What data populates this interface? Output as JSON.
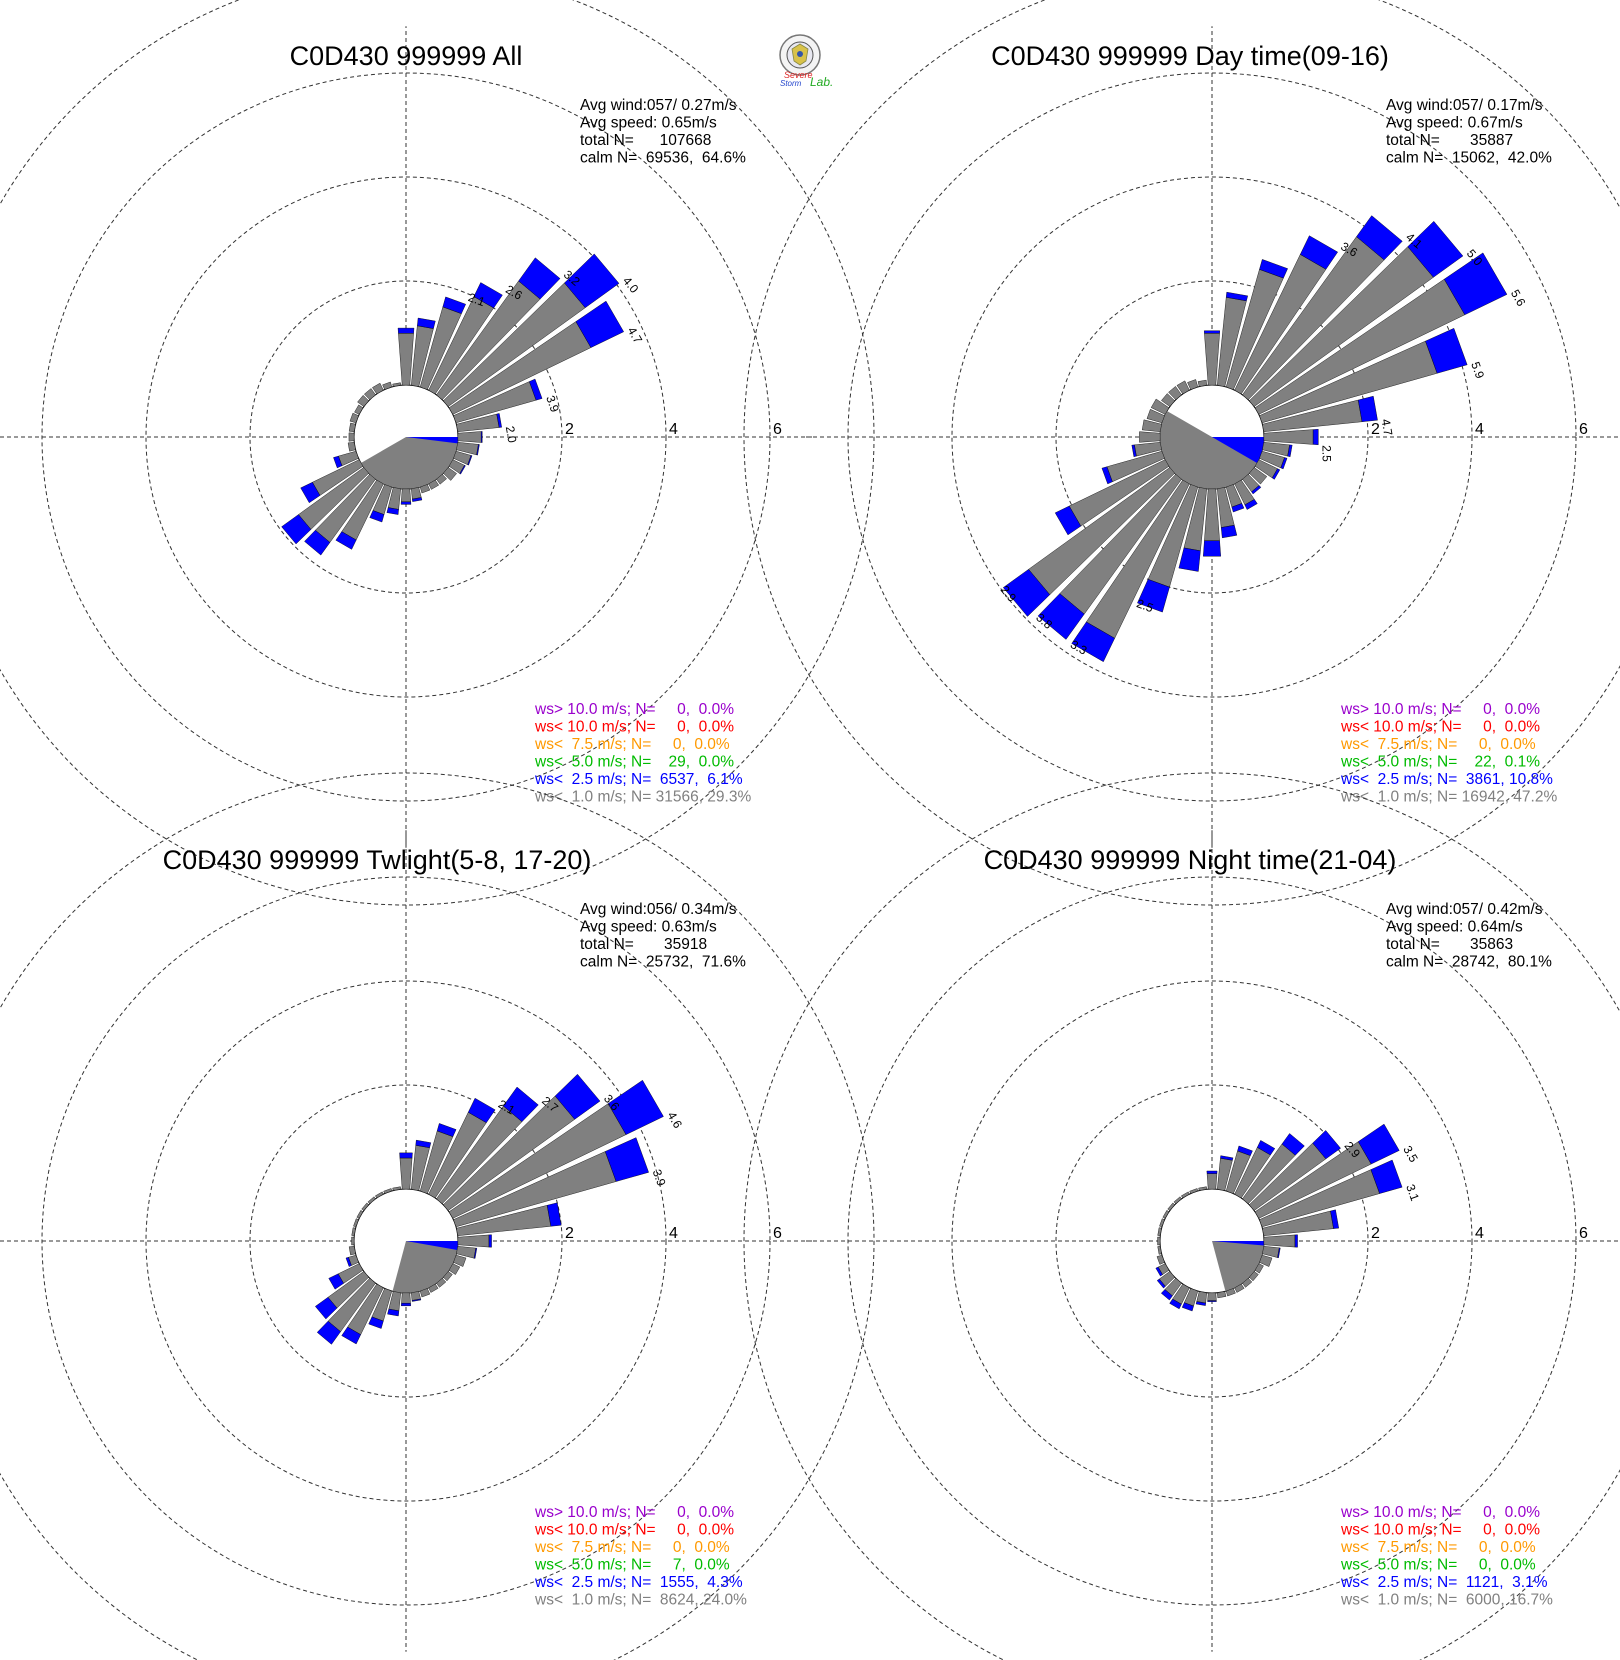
{
  "logo": {
    "text_top": "Severe",
    "text_bottom": "Storm",
    "text_lab": "Lab."
  },
  "colors": {
    "gt10": "#9900cc",
    "lt10": "#ff0000",
    "lt7_5": "#ff9900",
    "lt5": "#00bb00",
    "lt2_5": "#0000ff",
    "lt1": "#808080",
    "calm_fill": "#808080",
    "grid": "#333333"
  },
  "chart_data": [
    {
      "type": "wind_rose",
      "title": "C0D430 999999 All",
      "rlim": [
        0,
        6
      ],
      "rticks": [
        "2",
        "4",
        "6"
      ],
      "info": {
        "avg_wind": "Avg wind:057/ 0.27m/s",
        "avg_speed": "Avg speed: 0.65m/s",
        "total": "total N=      107668",
        "calm": "calm N=  69536,  64.6%"
      },
      "calm_wedge": {
        "from_dir": 90,
        "to_dir": 240,
        "blue_to_dir": 97
      },
      "legend": [
        "ws> 10.0 m/s; N=     0,  0.0%",
        "ws< 10.0 m/s; N=     0,  0.0%",
        "ws<  7.5 m/s; N=     0,  0.0%",
        "ws<  5.0 m/s; N=    29,  0.0%",
        "ws<  2.5 m/s; N=  6537,  6.1%",
        "ws<  1.0 m/s; N= 31566, 29.3%"
      ],
      "directions": [
        0,
        10,
        20,
        30,
        40,
        50,
        60,
        70,
        80,
        90,
        100,
        110,
        120,
        130,
        140,
        150,
        160,
        170,
        180,
        190,
        200,
        210,
        220,
        230,
        240,
        250,
        260,
        270,
        280,
        290,
        300,
        310,
        320,
        330,
        340,
        350
      ],
      "series": [
        {
          "name": "ws< 1.0 m/s",
          "values": [
            1.0,
            1.15,
            1.6,
            2.0,
            2.7,
            3.25,
            2.95,
            1.6,
            0.8,
            0.45,
            0.4,
            0.3,
            0.25,
            0.2,
            0.12,
            0.12,
            0.12,
            0.2,
            0.25,
            0.4,
            0.55,
            1.2,
            1.5,
            1.55,
            1.0,
            0.35,
            0.12,
            0.1,
            0.1,
            0.12,
            0.1,
            0.15,
            0.15,
            0.15,
            0.1,
            0.05
          ]
        },
        {
          "name": "ws< 2.5 m/s",
          "values": [
            0.1,
            0.15,
            0.2,
            0.3,
            0.55,
            0.8,
            0.7,
            0.12,
            0.05,
            0.02,
            0.02,
            0.02,
            0.02,
            0.0,
            0.0,
            0.0,
            0.0,
            0.05,
            0.05,
            0.1,
            0.15,
            0.2,
            0.3,
            0.4,
            0.25,
            0.1,
            0.0,
            0.0,
            0.0,
            0.0,
            0.0,
            0.0,
            0.0,
            0.0,
            0.0,
            0.0
          ]
        }
      ],
      "peak_labels": [
        {
          "dir": 20,
          "text": "2.1"
        },
        {
          "dir": 30,
          "text": "2.6"
        },
        {
          "dir": 40,
          "text": "3.2"
        },
        {
          "dir": 50,
          "text": "4.0"
        },
        {
          "dir": 60,
          "text": "4.7"
        },
        {
          "dir": 70,
          "text": "3.9"
        },
        {
          "dir": 80,
          "text": "2.0"
        }
      ]
    },
    {
      "type": "wind_rose",
      "title": "C0D430 999999 Day time(09-16)",
      "rlim": [
        0,
        6
      ],
      "rticks": [
        "2",
        "4",
        "6"
      ],
      "info": {
        "avg_wind": "Avg wind:057/ 0.17m/s",
        "avg_speed": "Avg speed: 0.67m/s",
        "total": "total N=       35887",
        "calm": "calm N=  15062,  42.0%"
      },
      "calm_wedge": {
        "from_dir": 90,
        "to_dir": 300,
        "blue_to_dir": 120
      },
      "legend": [
        "ws> 10.0 m/s; N=     0,  0.0%",
        "ws< 10.0 m/s; N=     0,  0.0%",
        "ws<  7.5 m/s; N=     0,  0.0%",
        "ws<  5.0 m/s; N=    22,  0.1%",
        "ws<  2.5 m/s; N=  3861, 10.8%",
        "ws<  1.0 m/s; N= 16942, 47.2%"
      ],
      "directions": [
        0,
        10,
        20,
        30,
        40,
        50,
        60,
        70,
        80,
        90,
        100,
        110,
        120,
        130,
        140,
        150,
        160,
        170,
        180,
        190,
        200,
        210,
        220,
        230,
        240,
        250,
        260,
        270,
        280,
        290,
        300,
        310,
        320,
        330,
        340,
        350
      ],
      "series": [
        {
          "name": "ws< 1.0 m/s",
          "values": [
            1.0,
            1.7,
            2.35,
            2.9,
            3.75,
            4.25,
            4.4,
            3.5,
            1.9,
            0.95,
            0.5,
            0.45,
            0.4,
            0.3,
            0.3,
            0.45,
            0.4,
            0.75,
            1.0,
            1.2,
            2.0,
            3.3,
            3.2,
            3.35,
            2.05,
            1.1,
            0.5,
            0.4,
            0.35,
            0.3,
            0.3,
            0.2,
            0.2,
            0.2,
            0.15,
            0.1
          ]
        },
        {
          "name": "ws< 2.5 m/s",
          "values": [
            0.05,
            0.1,
            0.2,
            0.4,
            0.5,
            0.7,
            0.9,
            0.6,
            0.3,
            0.1,
            0.05,
            0.05,
            0.05,
            0.0,
            0.05,
            0.1,
            0.1,
            0.2,
            0.3,
            0.4,
            0.5,
            0.5,
            0.6,
            0.6,
            0.3,
            0.1,
            0.05,
            0.0,
            0.0,
            0.0,
            0.0,
            0.0,
            0.0,
            0.0,
            0.0,
            0.0
          ]
        }
      ],
      "peak_labels": [
        {
          "dir": 30,
          "text": "3.6"
        },
        {
          "dir": 40,
          "text": "4.1"
        },
        {
          "dir": 50,
          "text": "5.0"
        },
        {
          "dir": 60,
          "text": "5.6"
        },
        {
          "dir": 70,
          "text": "5.9"
        },
        {
          "dir": 80,
          "text": "4.7"
        },
        {
          "dir": 90,
          "text": "2.5"
        },
        {
          "dir": 200,
          "text": "2.5"
        },
        {
          "dir": 210,
          "text": "3.3"
        },
        {
          "dir": 220,
          "text": "3.8"
        },
        {
          "dir": 230,
          "text": "2.9"
        }
      ]
    },
    {
      "type": "wind_rose",
      "title": "C0D430 999999 Twlight(5-8, 17-20)",
      "rlim": [
        0,
        6
      ],
      "rticks": [
        "2",
        "4",
        "6"
      ],
      "info": {
        "avg_wind": "Avg wind:056/ 0.34m/s",
        "avg_speed": "Avg speed: 0.63m/s",
        "total": "total N=       35918",
        "calm": "calm N=  25732,  71.6%"
      },
      "calm_wedge": {
        "from_dir": 90,
        "to_dir": 195,
        "blue_to_dir": 100
      },
      "legend": [
        "ws> 10.0 m/s; N=     0,  0.0%",
        "ws< 10.0 m/s; N=     0,  0.0%",
        "ws<  7.5 m/s; N=     0,  0.0%",
        "ws<  5.0 m/s; N=     7,  0.0%",
        "ws<  2.5 m/s; N=  1555,  4.3%",
        "ws<  1.0 m/s; N=  8624, 24.0%"
      ],
      "directions": [
        0,
        10,
        20,
        30,
        40,
        50,
        60,
        70,
        80,
        90,
        100,
        110,
        120,
        130,
        140,
        150,
        160,
        170,
        180,
        190,
        200,
        210,
        220,
        230,
        240,
        250,
        260,
        270,
        280,
        290,
        300,
        310,
        320,
        330,
        340,
        350
      ],
      "series": [
        {
          "name": "ws< 1.0 m/s",
          "values": [
            0.6,
            0.85,
            1.2,
            1.75,
            2.2,
            3.0,
            3.7,
            3.2,
            1.8,
            0.6,
            0.35,
            0.2,
            0.15,
            0.1,
            0.1,
            0.1,
            0.12,
            0.15,
            0.2,
            0.35,
            0.6,
            1.0,
            1.15,
            0.85,
            0.45,
            0.15,
            0.1,
            0.05,
            0.05,
            0.05,
            0.05,
            0.05,
            0.05,
            0.05,
            0.05,
            0.05
          ]
        },
        {
          "name": "ws< 2.5 m/s",
          "values": [
            0.1,
            0.1,
            0.15,
            0.3,
            0.45,
            0.6,
            0.8,
            0.65,
            0.2,
            0.05,
            0.02,
            0.0,
            0.0,
            0.0,
            0.0,
            0.0,
            0.0,
            0.02,
            0.05,
            0.1,
            0.15,
            0.2,
            0.3,
            0.3,
            0.2,
            0.05,
            0.0,
            0.0,
            0.0,
            0.0,
            0.0,
            0.0,
            0.0,
            0.0,
            0.0,
            0.0
          ]
        }
      ],
      "peak_labels": [
        {
          "dir": 30,
          "text": "2.1"
        },
        {
          "dir": 40,
          "text": "2.7"
        },
        {
          "dir": 50,
          "text": "3.6"
        },
        {
          "dir": 60,
          "text": "4.6"
        },
        {
          "dir": 70,
          "text": "3.9"
        }
      ]
    },
    {
      "type": "wind_rose",
      "title": "C0D430 999999 Night time(21-04)",
      "rlim": [
        0,
        6
      ],
      "rticks": [
        "2",
        "4",
        "6"
      ],
      "info": {
        "avg_wind": "Avg wind:057/ 0.42m/s",
        "avg_speed": "Avg speed: 0.64m/s",
        "total": "total N=       35863",
        "calm": "calm N=  28742,  80.1%"
      },
      "calm_wedge": {
        "from_dir": 90,
        "to_dir": 165,
        "blue_to_dir": 95
      },
      "legend": [
        "ws> 10.0 m/s; N=     0,  0.0%",
        "ws< 10.0 m/s; N=     0,  0.0%",
        "ws<  7.5 m/s; N=     0,  0.0%",
        "ws<  5.0 m/s; N=     0,  0.0%",
        "ws<  2.5 m/s; N=  1121,  3.1%",
        "ws<  1.0 m/s; N=  6000, 16.7%"
      ],
      "directions": [
        0,
        10,
        20,
        30,
        40,
        50,
        60,
        70,
        80,
        90,
        100,
        110,
        120,
        130,
        140,
        150,
        160,
        170,
        180,
        190,
        200,
        210,
        220,
        230,
        240,
        250,
        260,
        270,
        280,
        290,
        300,
        310,
        320,
        330,
        340,
        350
      ],
      "series": [
        {
          "name": "ws< 1.0 m/s",
          "values": [
            0.3,
            0.6,
            0.8,
            1.0,
            1.3,
            1.7,
            2.4,
            2.35,
            1.35,
            0.6,
            0.3,
            0.2,
            0.1,
            0.1,
            0.1,
            0.1,
            0.1,
            0.1,
            0.15,
            0.2,
            0.3,
            0.35,
            0.3,
            0.25,
            0.15,
            0.1,
            0.05,
            0.05,
            0.05,
            0.05,
            0.05,
            0.05,
            0.05,
            0.05,
            0.05,
            0.05
          ]
        },
        {
          "name": "ws< 2.5 m/s",
          "values": [
            0.05,
            0.05,
            0.1,
            0.15,
            0.25,
            0.35,
            0.6,
            0.45,
            0.1,
            0.05,
            0.02,
            0.0,
            0.0,
            0.0,
            0.0,
            0.0,
            0.0,
            0.0,
            0.02,
            0.05,
            0.1,
            0.1,
            0.1,
            0.05,
            0.05,
            0.0,
            0.0,
            0.0,
            0.0,
            0.0,
            0.0,
            0.0,
            0.0,
            0.0,
            0.0,
            0.0
          ]
        }
      ],
      "peak_labels": [
        {
          "dir": 50,
          "text": "2.9"
        },
        {
          "dir": 60,
          "text": "3.5"
        },
        {
          "dir": 70,
          "text": "3.1"
        }
      ]
    }
  ]
}
